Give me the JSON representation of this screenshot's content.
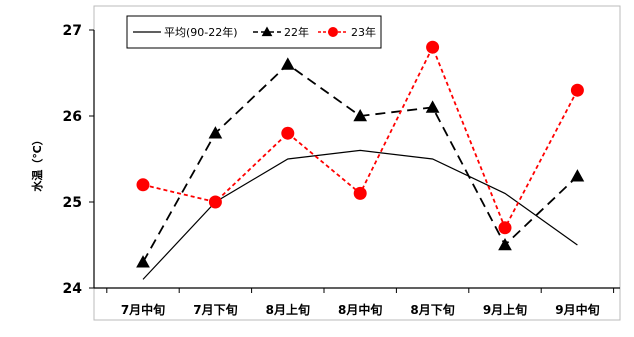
{
  "chart_data": {
    "type": "line",
    "title": "",
    "xlabel": "",
    "ylabel": "水温（℃）",
    "ylim": [
      24,
      27
    ],
    "yticks": [
      "24",
      "25",
      "26",
      "27"
    ],
    "grid": false,
    "legend_position": "top-left",
    "categories": [
      "7月中旬",
      "7月下旬",
      "8月上旬",
      "8月中旬",
      "8月下旬",
      "9月上旬",
      "9月中旬"
    ],
    "series": [
      {
        "name": "平均(90-22年)",
        "values": [
          24.1,
          25.0,
          25.5,
          25.6,
          25.5,
          25.1,
          24.5
        ],
        "color": "#000000",
        "line_style": "solid",
        "marker": "none"
      },
      {
        "name": "22年",
        "values": [
          24.3,
          25.8,
          26.6,
          26.0,
          26.1,
          24.5,
          25.3
        ],
        "color": "#000000",
        "line_style": "dashed",
        "marker": "triangle"
      },
      {
        "name": "23年",
        "values": [
          25.2,
          25.0,
          25.8,
          25.1,
          26.8,
          24.7,
          26.3
        ],
        "color": "#ff0000",
        "line_style": "dotted",
        "marker": "circle"
      }
    ]
  }
}
